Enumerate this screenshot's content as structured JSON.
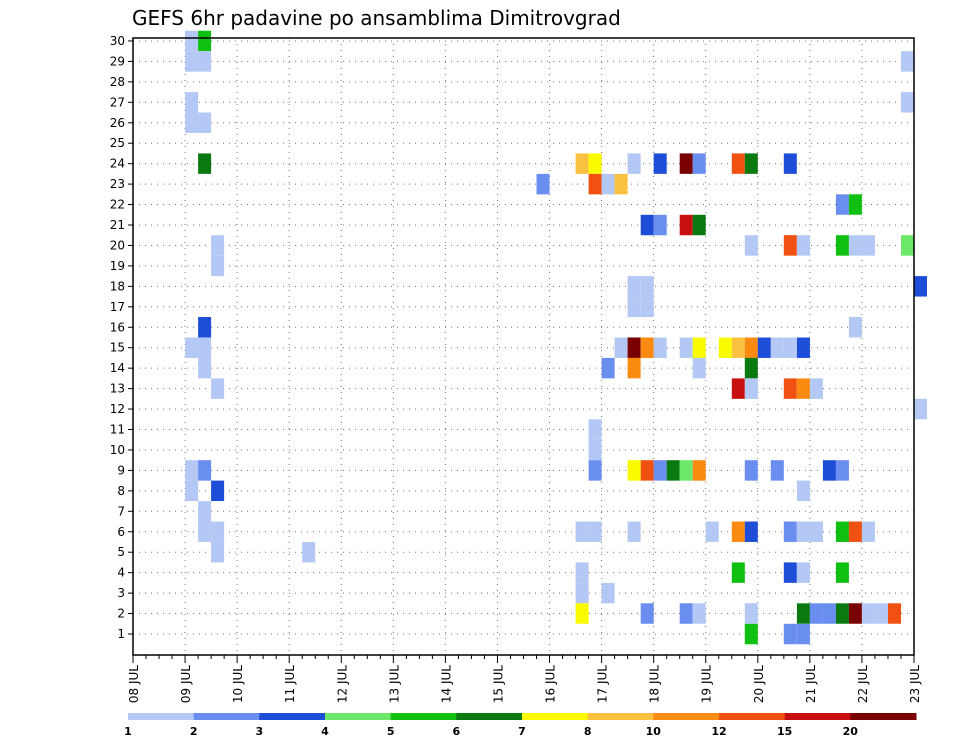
{
  "chart_data": {
    "type": "heatmap",
    "title": "GEFS 6hr padavine po ansamblima Dimitrovgrad",
    "xlabel": "",
    "ylabel": "",
    "x_ticks": [
      "08 JUL",
      "09 JUL",
      "10 JUL",
      "11 JUL",
      "12 JUL",
      "13 JUL",
      "14 JUL",
      "15 JUL",
      "16 JUL",
      "17 JUL",
      "18 JUL",
      "19 JUL",
      "20 JUL",
      "21 JUL",
      "22 JUL",
      "23 JUL"
    ],
    "y_ticks": [
      1,
      2,
      3,
      4,
      5,
      6,
      7,
      8,
      9,
      10,
      11,
      12,
      13,
      14,
      15,
      16,
      17,
      18,
      19,
      20,
      21,
      22,
      23,
      24,
      25,
      26,
      27,
      28,
      29,
      30
    ],
    "steps_per_day": 4,
    "grid": true,
    "legend": {
      "placement": "bottom",
      "labels": [
        "1",
        "2",
        "3",
        "4",
        "5",
        "6",
        "7",
        "8",
        "10",
        "12",
        "15",
        "20"
      ],
      "colors": [
        "#b4c8f5",
        "#6a8ef0",
        "#1e4ed8",
        "#6ee86a",
        "#10c010",
        "#0a7a10",
        "#fafa00",
        "#fac040",
        "#fa8a10",
        "#f05010",
        "#c81010",
        "#780000"
      ]
    },
    "cells": [
      {
        "member": 30,
        "step": 4,
        "bin": 0
      },
      {
        "member": 30,
        "step": 5,
        "bin": 4
      },
      {
        "member": 29,
        "step": 4,
        "bin": 0
      },
      {
        "member": 29,
        "step": 5,
        "bin": 0
      },
      {
        "member": 29,
        "step": 59,
        "bin": 0
      },
      {
        "member": 27,
        "step": 4,
        "bin": 0
      },
      {
        "member": 27,
        "step": 59,
        "bin": 0
      },
      {
        "member": 26,
        "step": 4,
        "bin": 0
      },
      {
        "member": 26,
        "step": 5,
        "bin": 0
      },
      {
        "member": 24,
        "step": 5,
        "bin": 5
      },
      {
        "member": 24,
        "step": 34,
        "bin": 7
      },
      {
        "member": 24,
        "step": 35,
        "bin": 6
      },
      {
        "member": 24,
        "step": 38,
        "bin": 0
      },
      {
        "member": 24,
        "step": 40,
        "bin": 2
      },
      {
        "member": 24,
        "step": 42,
        "bin": 11
      },
      {
        "member": 24,
        "step": 43,
        "bin": 1
      },
      {
        "member": 24,
        "step": 46,
        "bin": 9
      },
      {
        "member": 24,
        "step": 47,
        "bin": 5
      },
      {
        "member": 24,
        "step": 50,
        "bin": 2
      },
      {
        "member": 23,
        "step": 31,
        "bin": 1
      },
      {
        "member": 23,
        "step": 35,
        "bin": 9
      },
      {
        "member": 23,
        "step": 36,
        "bin": 0
      },
      {
        "member": 23,
        "step": 37,
        "bin": 7
      },
      {
        "member": 22,
        "step": 54,
        "bin": 1
      },
      {
        "member": 22,
        "step": 55,
        "bin": 4
      },
      {
        "member": 21,
        "step": 39,
        "bin": 2
      },
      {
        "member": 21,
        "step": 40,
        "bin": 1
      },
      {
        "member": 21,
        "step": 42,
        "bin": 10
      },
      {
        "member": 21,
        "step": 43,
        "bin": 5
      },
      {
        "member": 20,
        "step": 6,
        "bin": 0
      },
      {
        "member": 20,
        "step": 47,
        "bin": 0
      },
      {
        "member": 20,
        "step": 50,
        "bin": 9
      },
      {
        "member": 20,
        "step": 51,
        "bin": 0
      },
      {
        "member": 20,
        "step": 54,
        "bin": 4
      },
      {
        "member": 20,
        "step": 55,
        "bin": 0
      },
      {
        "member": 20,
        "step": 56,
        "bin": 0
      },
      {
        "member": 20,
        "step": 59,
        "bin": 3
      },
      {
        "member": 19,
        "step": 6,
        "bin": 0
      },
      {
        "member": 18,
        "step": 60,
        "bin": 2
      },
      {
        "member": 18,
        "step": 38,
        "bin": 0
      },
      {
        "member": 18,
        "step": 39,
        "bin": 0
      },
      {
        "member": 17,
        "step": 38,
        "bin": 0
      },
      {
        "member": 17,
        "step": 39,
        "bin": 0
      },
      {
        "member": 16,
        "step": 5,
        "bin": 2
      },
      {
        "member": 16,
        "step": 55,
        "bin": 0
      },
      {
        "member": 15,
        "step": 5,
        "bin": 0
      },
      {
        "member": 15,
        "step": 4,
        "bin": 0
      },
      {
        "member": 15,
        "step": 37,
        "bin": 0
      },
      {
        "member": 15,
        "step": 38,
        "bin": 11
      },
      {
        "member": 15,
        "step": 39,
        "bin": 8
      },
      {
        "member": 15,
        "step": 40,
        "bin": 0
      },
      {
        "member": 15,
        "step": 42,
        "bin": 0
      },
      {
        "member": 15,
        "step": 43,
        "bin": 6
      },
      {
        "member": 15,
        "step": 45,
        "bin": 6
      },
      {
        "member": 15,
        "step": 46,
        "bin": 7
      },
      {
        "member": 15,
        "step": 47,
        "bin": 8
      },
      {
        "member": 15,
        "step": 48,
        "bin": 2
      },
      {
        "member": 15,
        "step": 49,
        "bin": 0
      },
      {
        "member": 15,
        "step": 50,
        "bin": 0
      },
      {
        "member": 15,
        "step": 51,
        "bin": 2
      },
      {
        "member": 14,
        "step": 5,
        "bin": 0
      },
      {
        "member": 14,
        "step": 36,
        "bin": 1
      },
      {
        "member": 14,
        "step": 38,
        "bin": 8
      },
      {
        "member": 14,
        "step": 43,
        "bin": 0
      },
      {
        "member": 14,
        "step": 47,
        "bin": 5
      },
      {
        "member": 13,
        "step": 6,
        "bin": 0
      },
      {
        "member": 13,
        "step": 46,
        "bin": 10
      },
      {
        "member": 13,
        "step": 47,
        "bin": 0
      },
      {
        "member": 13,
        "step": 50,
        "bin": 9
      },
      {
        "member": 13,
        "step": 51,
        "bin": 8
      },
      {
        "member": 13,
        "step": 52,
        "bin": 0
      },
      {
        "member": 12,
        "step": 60,
        "bin": 0
      },
      {
        "member": 11,
        "step": 35,
        "bin": 0
      },
      {
        "member": 10,
        "step": 35,
        "bin": 0
      },
      {
        "member": 9,
        "step": 4,
        "bin": 0
      },
      {
        "member": 9,
        "step": 5,
        "bin": 1
      },
      {
        "member": 9,
        "step": 35,
        "bin": 1
      },
      {
        "member": 9,
        "step": 38,
        "bin": 6
      },
      {
        "member": 9,
        "step": 39,
        "bin": 9
      },
      {
        "member": 9,
        "step": 40,
        "bin": 1
      },
      {
        "member": 9,
        "step": 41,
        "bin": 5
      },
      {
        "member": 9,
        "step": 42,
        "bin": 3
      },
      {
        "member": 9,
        "step": 43,
        "bin": 8
      },
      {
        "member": 9,
        "step": 47,
        "bin": 1
      },
      {
        "member": 9,
        "step": 49,
        "bin": 1
      },
      {
        "member": 9,
        "step": 53,
        "bin": 2
      },
      {
        "member": 9,
        "step": 54,
        "bin": 1
      },
      {
        "member": 8,
        "step": 4,
        "bin": 0
      },
      {
        "member": 8,
        "step": 6,
        "bin": 2
      },
      {
        "member": 8,
        "step": 51,
        "bin": 0
      },
      {
        "member": 7,
        "step": 5,
        "bin": 0
      },
      {
        "member": 6,
        "step": 5,
        "bin": 0
      },
      {
        "member": 6,
        "step": 6,
        "bin": 0
      },
      {
        "member": 6,
        "step": 34,
        "bin": 0
      },
      {
        "member": 6,
        "step": 35,
        "bin": 0
      },
      {
        "member": 6,
        "step": 38,
        "bin": 0
      },
      {
        "member": 6,
        "step": 44,
        "bin": 0
      },
      {
        "member": 6,
        "step": 46,
        "bin": 8
      },
      {
        "member": 6,
        "step": 47,
        "bin": 2
      },
      {
        "member": 6,
        "step": 50,
        "bin": 1
      },
      {
        "member": 6,
        "step": 51,
        "bin": 0
      },
      {
        "member": 6,
        "step": 52,
        "bin": 0
      },
      {
        "member": 6,
        "step": 54,
        "bin": 4
      },
      {
        "member": 6,
        "step": 55,
        "bin": 9
      },
      {
        "member": 6,
        "step": 56,
        "bin": 0
      },
      {
        "member": 5,
        "step": 6,
        "bin": 0
      },
      {
        "member": 5,
        "step": 13,
        "bin": 0
      },
      {
        "member": 4,
        "step": 34,
        "bin": 0
      },
      {
        "member": 4,
        "step": 46,
        "bin": 4
      },
      {
        "member": 4,
        "step": 50,
        "bin": 2
      },
      {
        "member": 4,
        "step": 51,
        "bin": 0
      },
      {
        "member": 4,
        "step": 54,
        "bin": 4
      },
      {
        "member": 3,
        "step": 34,
        "bin": 0
      },
      {
        "member": 3,
        "step": 36,
        "bin": 0
      },
      {
        "member": 2,
        "step": 34,
        "bin": 6
      },
      {
        "member": 2,
        "step": 39,
        "bin": 1
      },
      {
        "member": 2,
        "step": 42,
        "bin": 1
      },
      {
        "member": 2,
        "step": 43,
        "bin": 0
      },
      {
        "member": 2,
        "step": 47,
        "bin": 0
      },
      {
        "member": 2,
        "step": 51,
        "bin": 5
      },
      {
        "member": 2,
        "step": 52,
        "bin": 1
      },
      {
        "member": 2,
        "step": 53,
        "bin": 1
      },
      {
        "member": 2,
        "step": 54,
        "bin": 5
      },
      {
        "member": 2,
        "step": 55,
        "bin": 11
      },
      {
        "member": 2,
        "step": 56,
        "bin": 0
      },
      {
        "member": 2,
        "step": 57,
        "bin": 0
      },
      {
        "member": 2,
        "step": 58,
        "bin": 9
      },
      {
        "member": 1,
        "step": 47,
        "bin": 4
      },
      {
        "member": 1,
        "step": 50,
        "bin": 1
      },
      {
        "member": 1,
        "step": 51,
        "bin": 1
      }
    ]
  }
}
